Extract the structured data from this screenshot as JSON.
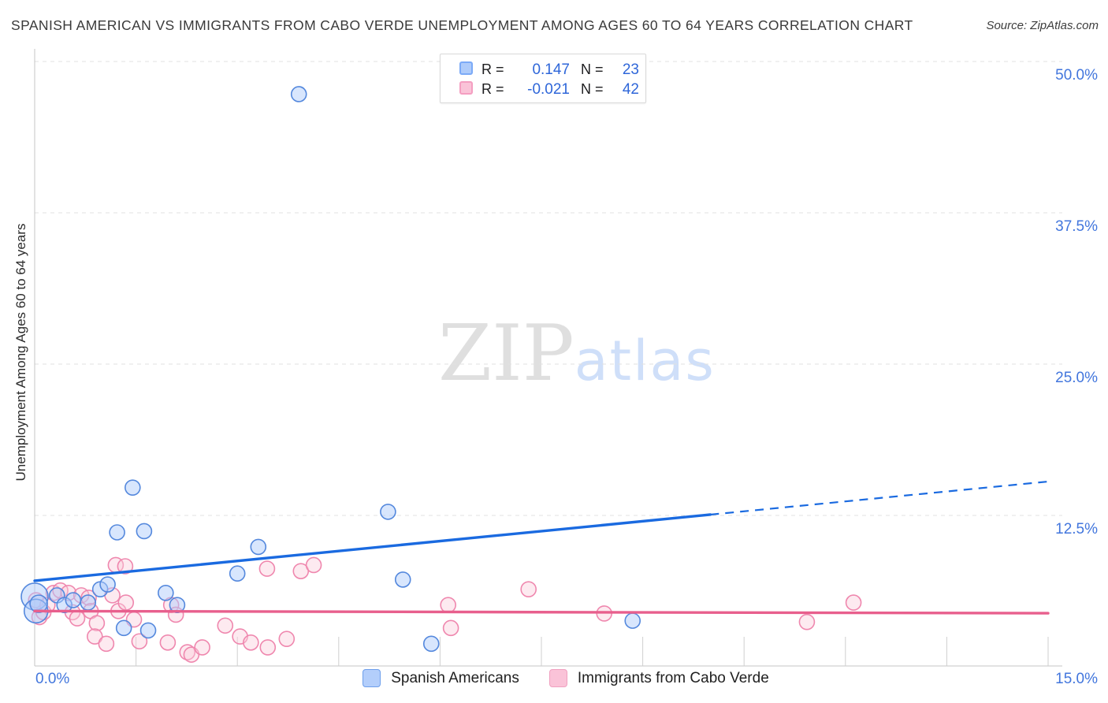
{
  "header": {
    "title": "SPANISH AMERICAN VS IMMIGRANTS FROM CABO VERDE UNEMPLOYMENT AMONG AGES 60 TO 64 YEARS CORRELATION CHART",
    "source": "Source: ZipAtlas.com"
  },
  "legend_box": {
    "rows": [
      {
        "series": "Spanish Americans",
        "r_label": "R =",
        "r_value": "0.147",
        "n_label": "N =",
        "n_value": "23"
      },
      {
        "series": "Immigrants from Cabo Verde",
        "r_label": "R =",
        "r_value": "-0.021",
        "n_label": "N =",
        "n_value": "42"
      }
    ]
  },
  "watermark": {
    "part1": "ZIP",
    "part2": "atlas"
  },
  "bottom_legend": {
    "items": [
      "Spanish Americans",
      "Immigrants from Cabo Verde"
    ]
  },
  "colors": {
    "axis_text_blue": "#4276dd",
    "value_blue": "#2e66d9",
    "blue_line": "#1a6ae0",
    "pink_line": "#e85f8d",
    "blue_point_stroke": "#5488dd",
    "pink_point_stroke": "#ef87ae",
    "gridline": "#e0e0e0",
    "axis_line": "#c5c5c5"
  },
  "chart_data": {
    "type": "scatter",
    "title": "Spanish American vs Immigrants from Cabo Verde Unemployment Among Ages 60 to 64 years",
    "xlabel": "",
    "ylabel": "Unemployment Among Ages 60 to 64 years",
    "legend_position": "bottom",
    "grid": "horizontal-dashed",
    "x_axis": {
      "min": 0,
      "max": 15,
      "tick_step_pct": 1.5,
      "min_label": "0.0%",
      "max_label": "15.0%"
    },
    "y_axis": {
      "min": 0,
      "max": 50,
      "ticks": [
        {
          "pct": 50,
          "label": "50.0%"
        },
        {
          "pct": 37.5,
          "label": "37.5%"
        },
        {
          "pct": 25,
          "label": "25.0%"
        },
        {
          "pct": 12.5,
          "label": "12.5%"
        }
      ]
    },
    "series": [
      {
        "name": "Spanish Americans",
        "R": 0.147,
        "N": 23,
        "stroke": "#5488dd",
        "fill": "rgba(174,203,250,0.48)",
        "line_color": "#1a6ae0",
        "trend": {
          "x0_pct": 0,
          "y0_pct": 7.1,
          "x1_pct": 15,
          "y1_pct": 15.3,
          "solid_until_pct": 10.0
        },
        "points": [
          [
            0.0,
            5.8,
            17
          ],
          [
            0.02,
            4.6,
            15
          ],
          [
            0.06,
            5.2,
            11
          ],
          [
            0.33,
            5.9
          ],
          [
            0.44,
            5.1
          ],
          [
            0.57,
            5.5
          ],
          [
            0.79,
            5.3
          ],
          [
            0.97,
            6.4
          ],
          [
            1.08,
            6.8
          ],
          [
            1.22,
            11.1
          ],
          [
            1.45,
            14.8
          ],
          [
            1.62,
            11.2
          ],
          [
            1.32,
            3.2
          ],
          [
            1.68,
            3.0
          ],
          [
            1.94,
            6.1
          ],
          [
            2.11,
            5.1
          ],
          [
            3.0,
            7.7
          ],
          [
            3.31,
            9.9
          ],
          [
            3.91,
            47.3
          ],
          [
            5.23,
            12.8
          ],
          [
            5.45,
            7.2
          ],
          [
            5.87,
            1.9
          ],
          [
            8.85,
            3.8
          ]
        ]
      },
      {
        "name": "Immigrants from Cabo Verde",
        "R": -0.021,
        "N": 42,
        "stroke": "#ef87ae",
        "fill": "rgba(250,205,220,0.42)",
        "line_color": "#e85f8d",
        "trend": {
          "x0_pct": 0,
          "y0_pct": 4.6,
          "x1_pct": 15,
          "y1_pct": 4.42,
          "solid_until_pct": 15
        },
        "points": [
          [
            0.02,
            5.5
          ],
          [
            0.07,
            4.1
          ],
          [
            0.13,
            4.5
          ],
          [
            0.19,
            5.1
          ],
          [
            0.28,
            6.1
          ],
          [
            0.38,
            6.3
          ],
          [
            0.5,
            6.1
          ],
          [
            0.56,
            4.5
          ],
          [
            0.63,
            4.0
          ],
          [
            0.69,
            5.9
          ],
          [
            0.8,
            5.7
          ],
          [
            0.83,
            4.6
          ],
          [
            0.92,
            3.6
          ],
          [
            0.89,
            2.5
          ],
          [
            1.06,
            1.9
          ],
          [
            1.15,
            5.9
          ],
          [
            1.24,
            4.6
          ],
          [
            1.35,
            5.3
          ],
          [
            1.47,
            3.9
          ],
          [
            1.55,
            2.1
          ],
          [
            1.2,
            8.4
          ],
          [
            1.34,
            8.3
          ],
          [
            2.02,
            5.1
          ],
          [
            2.09,
            4.3
          ],
          [
            1.97,
            2.0
          ],
          [
            2.26,
            1.2
          ],
          [
            2.32,
            1.0
          ],
          [
            2.48,
            1.6
          ],
          [
            2.82,
            3.4
          ],
          [
            3.04,
            2.5
          ],
          [
            3.2,
            2.0
          ],
          [
            3.45,
            1.6
          ],
          [
            3.73,
            2.3
          ],
          [
            3.44,
            8.1
          ],
          [
            3.94,
            7.9
          ],
          [
            4.13,
            8.4
          ],
          [
            6.12,
            5.1
          ],
          [
            6.16,
            3.2
          ],
          [
            7.31,
            6.4
          ],
          [
            8.43,
            4.4
          ],
          [
            11.43,
            3.7
          ],
          [
            12.12,
            5.3
          ]
        ]
      }
    ]
  }
}
